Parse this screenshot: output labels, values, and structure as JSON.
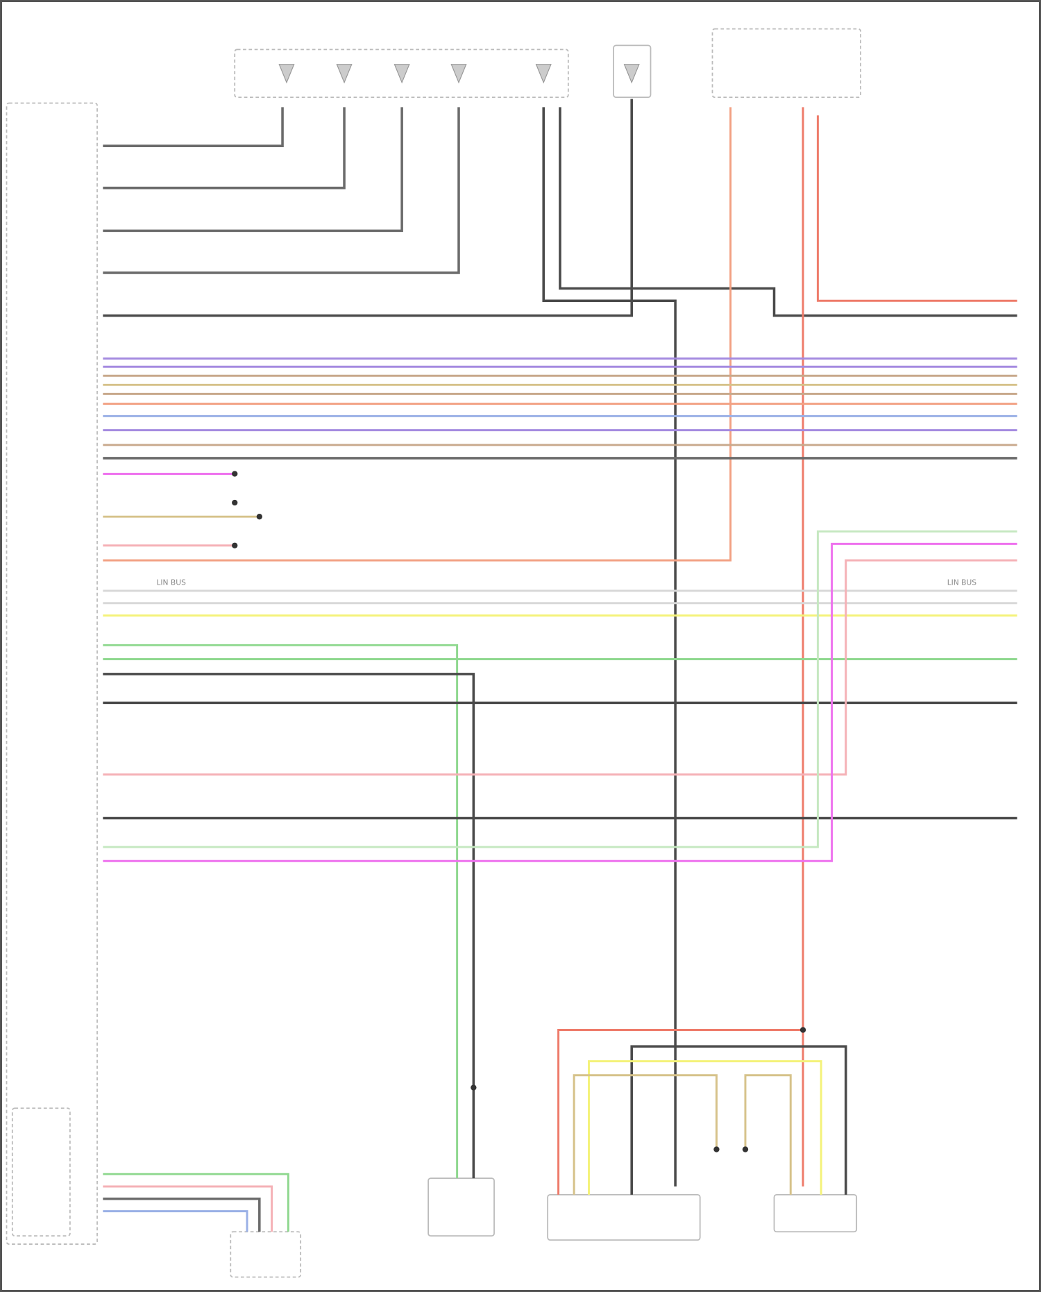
{
  "diagram": {
    "components": [
      {
        "id": "left-module"
      },
      {
        "id": "top-connector-block"
      },
      {
        "id": "sensor-top"
      },
      {
        "id": "fuse-relay-box"
      },
      {
        "id": "bottom-sensor-left"
      },
      {
        "id": "bottom-module-center"
      },
      {
        "id": "bottom-module-right"
      },
      {
        "id": "bottom-control-unit"
      },
      {
        "id": "small-connector-left"
      }
    ],
    "wire_colors": {
      "gray": "#6b6b6b",
      "dark": "#4a4a4a",
      "orange": "#f2a183",
      "red": "#ee7b6a",
      "purple": "#a58be0",
      "brown": "#c8a98c",
      "tan": "#d6c28a",
      "blue": "#9ab0e6",
      "magenta": "#ee72ee",
      "pink": "#f5b1b6",
      "yellow": "#f4f27a",
      "green": "#8fd88f",
      "lightgreen": "#c5e8c0",
      "lightgray": "#d8d8d8"
    },
    "labels": {
      "lin_bus": "LIN BUS"
    }
  }
}
